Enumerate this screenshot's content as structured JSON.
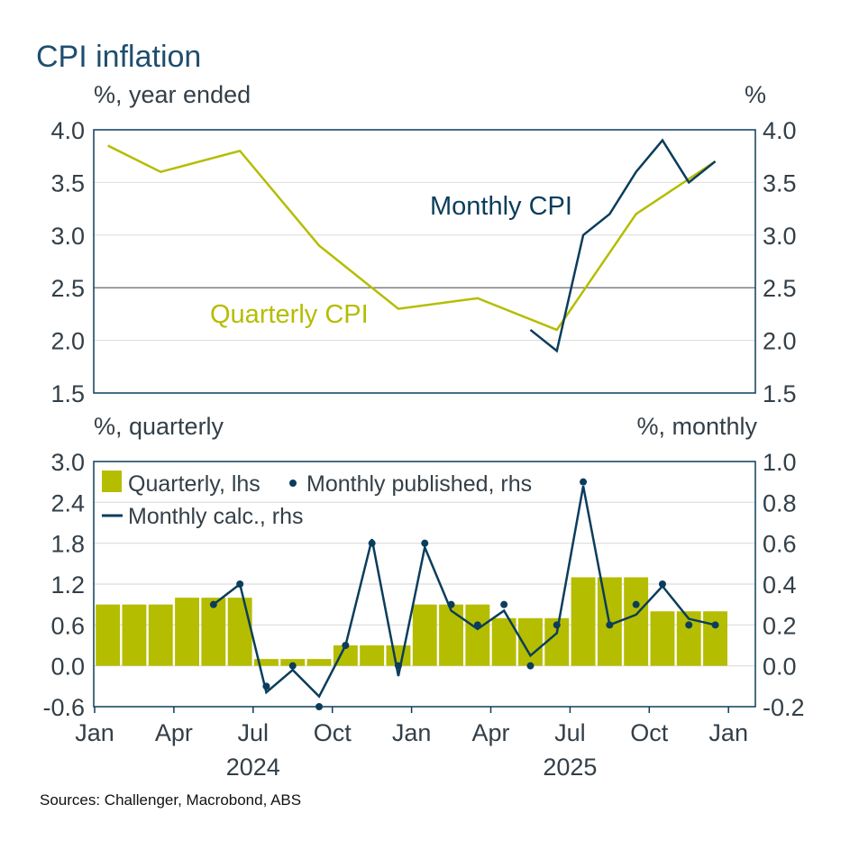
{
  "title": "CPI inflation",
  "source": "Sources: Challenger, Macrobond, ABS",
  "colors": {
    "quarterly": "#b5bd00",
    "monthly": "#0b3d5c",
    "frame": "#0b3d5c",
    "grid": "#dcdcdc",
    "reference_line": "#808080"
  },
  "chart_data": [
    {
      "type": "line",
      "panel": "top",
      "left_unit": "%, year ended",
      "right_unit": "%",
      "ylim": [
        1.5,
        4.0
      ],
      "yticks": [
        "4.0",
        "3.5",
        "3.0",
        "2.5",
        "2.0",
        "1.5"
      ],
      "reference_line": 2.5,
      "grid": true,
      "series": [
        {
          "name": "Quarterly CPI",
          "color": "#b5bd00",
          "x": [
            "2024-01",
            "2024-03",
            "2024-06",
            "2024-09",
            "2024-12",
            "2025-03",
            "2025-06",
            "2025-09",
            "2025-12"
          ],
          "values": [
            3.85,
            3.6,
            3.8,
            2.9,
            2.3,
            2.4,
            2.1,
            3.2,
            3.7
          ]
        },
        {
          "name": "Monthly CPI",
          "color": "#0b3d5c",
          "x": [
            "2025-05",
            "2025-06",
            "2025-07",
            "2025-08",
            "2025-09",
            "2025-10",
            "2025-11",
            "2025-12"
          ],
          "values": [
            2.1,
            1.9,
            3.0,
            3.2,
            3.6,
            3.9,
            3.5,
            3.7
          ]
        }
      ]
    },
    {
      "type": "bar",
      "panel": "bottom",
      "left_unit": "%, quarterly",
      "right_unit": "%, monthly",
      "ylim_left": [
        -0.6,
        3.0
      ],
      "ylim_right": [
        -0.2,
        1.0
      ],
      "yticks_left": [
        "3.0",
        "2.4",
        "1.8",
        "1.2",
        "0.6",
        "0.0",
        "-0.6"
      ],
      "yticks_right": [
        "1.0",
        "0.8",
        "0.6",
        "0.4",
        "0.2",
        "0.0",
        "-0.2"
      ],
      "grid": true,
      "legend_placement": "top-left",
      "x_tick_labels": [
        "Jan",
        "Apr",
        "Jul",
        "Oct",
        "Jan",
        "Apr",
        "Jul",
        "Oct",
        "Jan"
      ],
      "x_year_labels": [
        "2024",
        "2025"
      ],
      "series": [
        {
          "name": "Quarterly, lhs",
          "kind": "bar",
          "axis": "left",
          "color": "#b5bd00",
          "start": "2024-01",
          "values": [
            0.9,
            0.9,
            0.9,
            1.0,
            1.0,
            1.0,
            0.1,
            0.1,
            0.1,
            0.3,
            0.3,
            0.3,
            0.9,
            0.9,
            0.9,
            0.7,
            0.7,
            0.7,
            1.3,
            1.3,
            1.3,
            0.8,
            0.8,
            0.8
          ]
        },
        {
          "name": "Monthly published, rhs",
          "kind": "dot",
          "axis": "right",
          "color": "#0b3d5c",
          "start": "2024-05",
          "values": [
            0.3,
            0.4,
            -0.1,
            0.0,
            -0.2,
            0.1,
            0.6,
            0.0,
            0.6,
            0.3,
            0.2,
            0.3,
            0.0,
            0.2,
            0.9,
            0.2,
            0.3,
            0.4,
            0.2,
            0.2
          ]
        },
        {
          "name": "Monthly calc., rhs",
          "kind": "line",
          "axis": "right",
          "color": "#0b3d5c",
          "start": "2024-05",
          "values": [
            0.3,
            0.4,
            -0.13,
            -0.02,
            -0.15,
            0.1,
            0.62,
            -0.05,
            0.58,
            0.27,
            0.18,
            0.27,
            0.05,
            0.16,
            0.88,
            0.2,
            0.25,
            0.39,
            0.23,
            0.2
          ]
        }
      ]
    }
  ]
}
